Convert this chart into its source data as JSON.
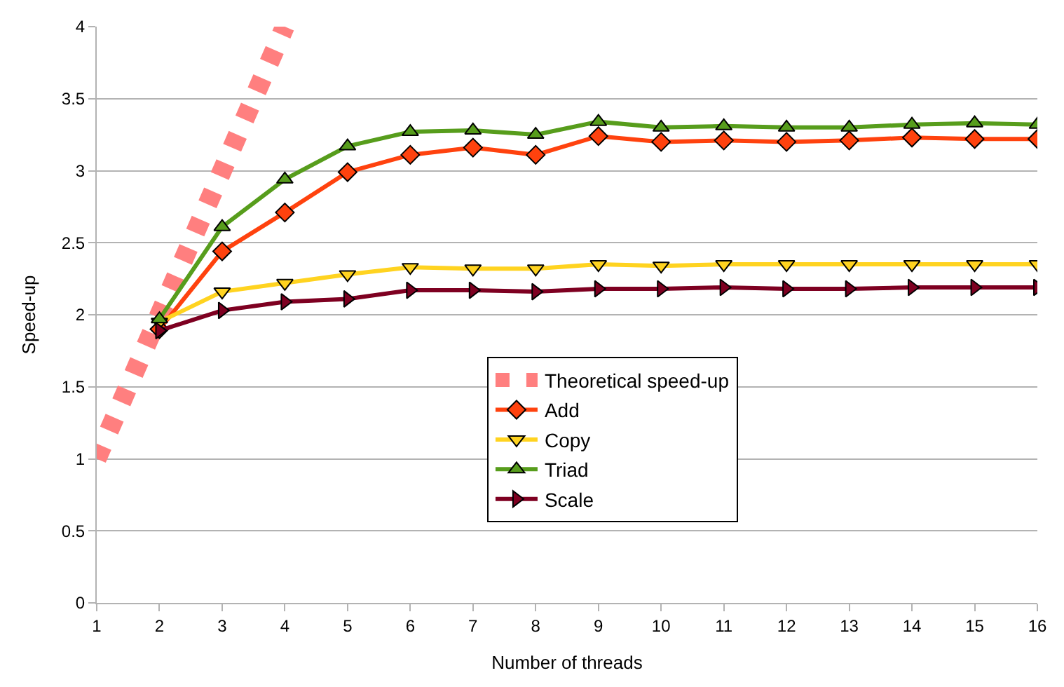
{
  "chart_data": {
    "type": "line",
    "xlabel": "Number of threads",
    "ylabel": "Speed-up",
    "xlim": [
      1,
      16
    ],
    "xticks": [
      1,
      2,
      3,
      4,
      5,
      6,
      7,
      8,
      9,
      10,
      11,
      12,
      13,
      14,
      15,
      16
    ],
    "ylim": [
      0,
      4
    ],
    "yticks": [
      0,
      0.5,
      1,
      1.5,
      2,
      2.5,
      3,
      3.5,
      4
    ],
    "grid": "y",
    "legend": "bottom",
    "series": [
      {
        "name": "Theoretical speed-up",
        "color": "#ff7f7f",
        "x": [
          1,
          4
        ],
        "values": [
          1,
          4
        ],
        "line_style": "dashed",
        "marker": "none"
      },
      {
        "name": "Add",
        "color": "#ff420e",
        "x": [
          2,
          3,
          4,
          5,
          6,
          7,
          8,
          9,
          10,
          11,
          12,
          13,
          14,
          15,
          16
        ],
        "values": [
          1.9,
          2.44,
          2.71,
          2.99,
          3.11,
          3.16,
          3.11,
          3.24,
          3.2,
          3.21,
          3.2,
          3.21,
          3.23,
          3.22,
          3.22
        ],
        "marker": "diamond"
      },
      {
        "name": "Copy",
        "color": "#ffd320",
        "x": [
          2,
          3,
          4,
          5,
          6,
          7,
          8,
          9,
          10,
          11,
          12,
          13,
          14,
          15,
          16
        ],
        "values": [
          1.95,
          2.16,
          2.22,
          2.28,
          2.33,
          2.32,
          2.32,
          2.35,
          2.34,
          2.35,
          2.35,
          2.35,
          2.35,
          2.35,
          2.35
        ],
        "marker": "triangle-down"
      },
      {
        "name": "Triad",
        "color": "#579d1c",
        "x": [
          2,
          3,
          4,
          5,
          6,
          7,
          8,
          9,
          10,
          11,
          12,
          13,
          14,
          15,
          16
        ],
        "values": [
          1.97,
          2.61,
          2.94,
          3.17,
          3.27,
          3.28,
          3.25,
          3.34,
          3.3,
          3.31,
          3.3,
          3.3,
          3.32,
          3.33,
          3.32
        ],
        "marker": "triangle-up"
      },
      {
        "name": "Scale",
        "color": "#7e0021",
        "x": [
          2,
          3,
          4,
          5,
          6,
          7,
          8,
          9,
          10,
          11,
          12,
          13,
          14,
          15,
          16
        ],
        "values": [
          1.89,
          2.03,
          2.09,
          2.11,
          2.17,
          2.17,
          2.16,
          2.18,
          2.18,
          2.19,
          2.18,
          2.18,
          2.19,
          2.19,
          2.19
        ],
        "marker": "triangle-right"
      }
    ]
  }
}
